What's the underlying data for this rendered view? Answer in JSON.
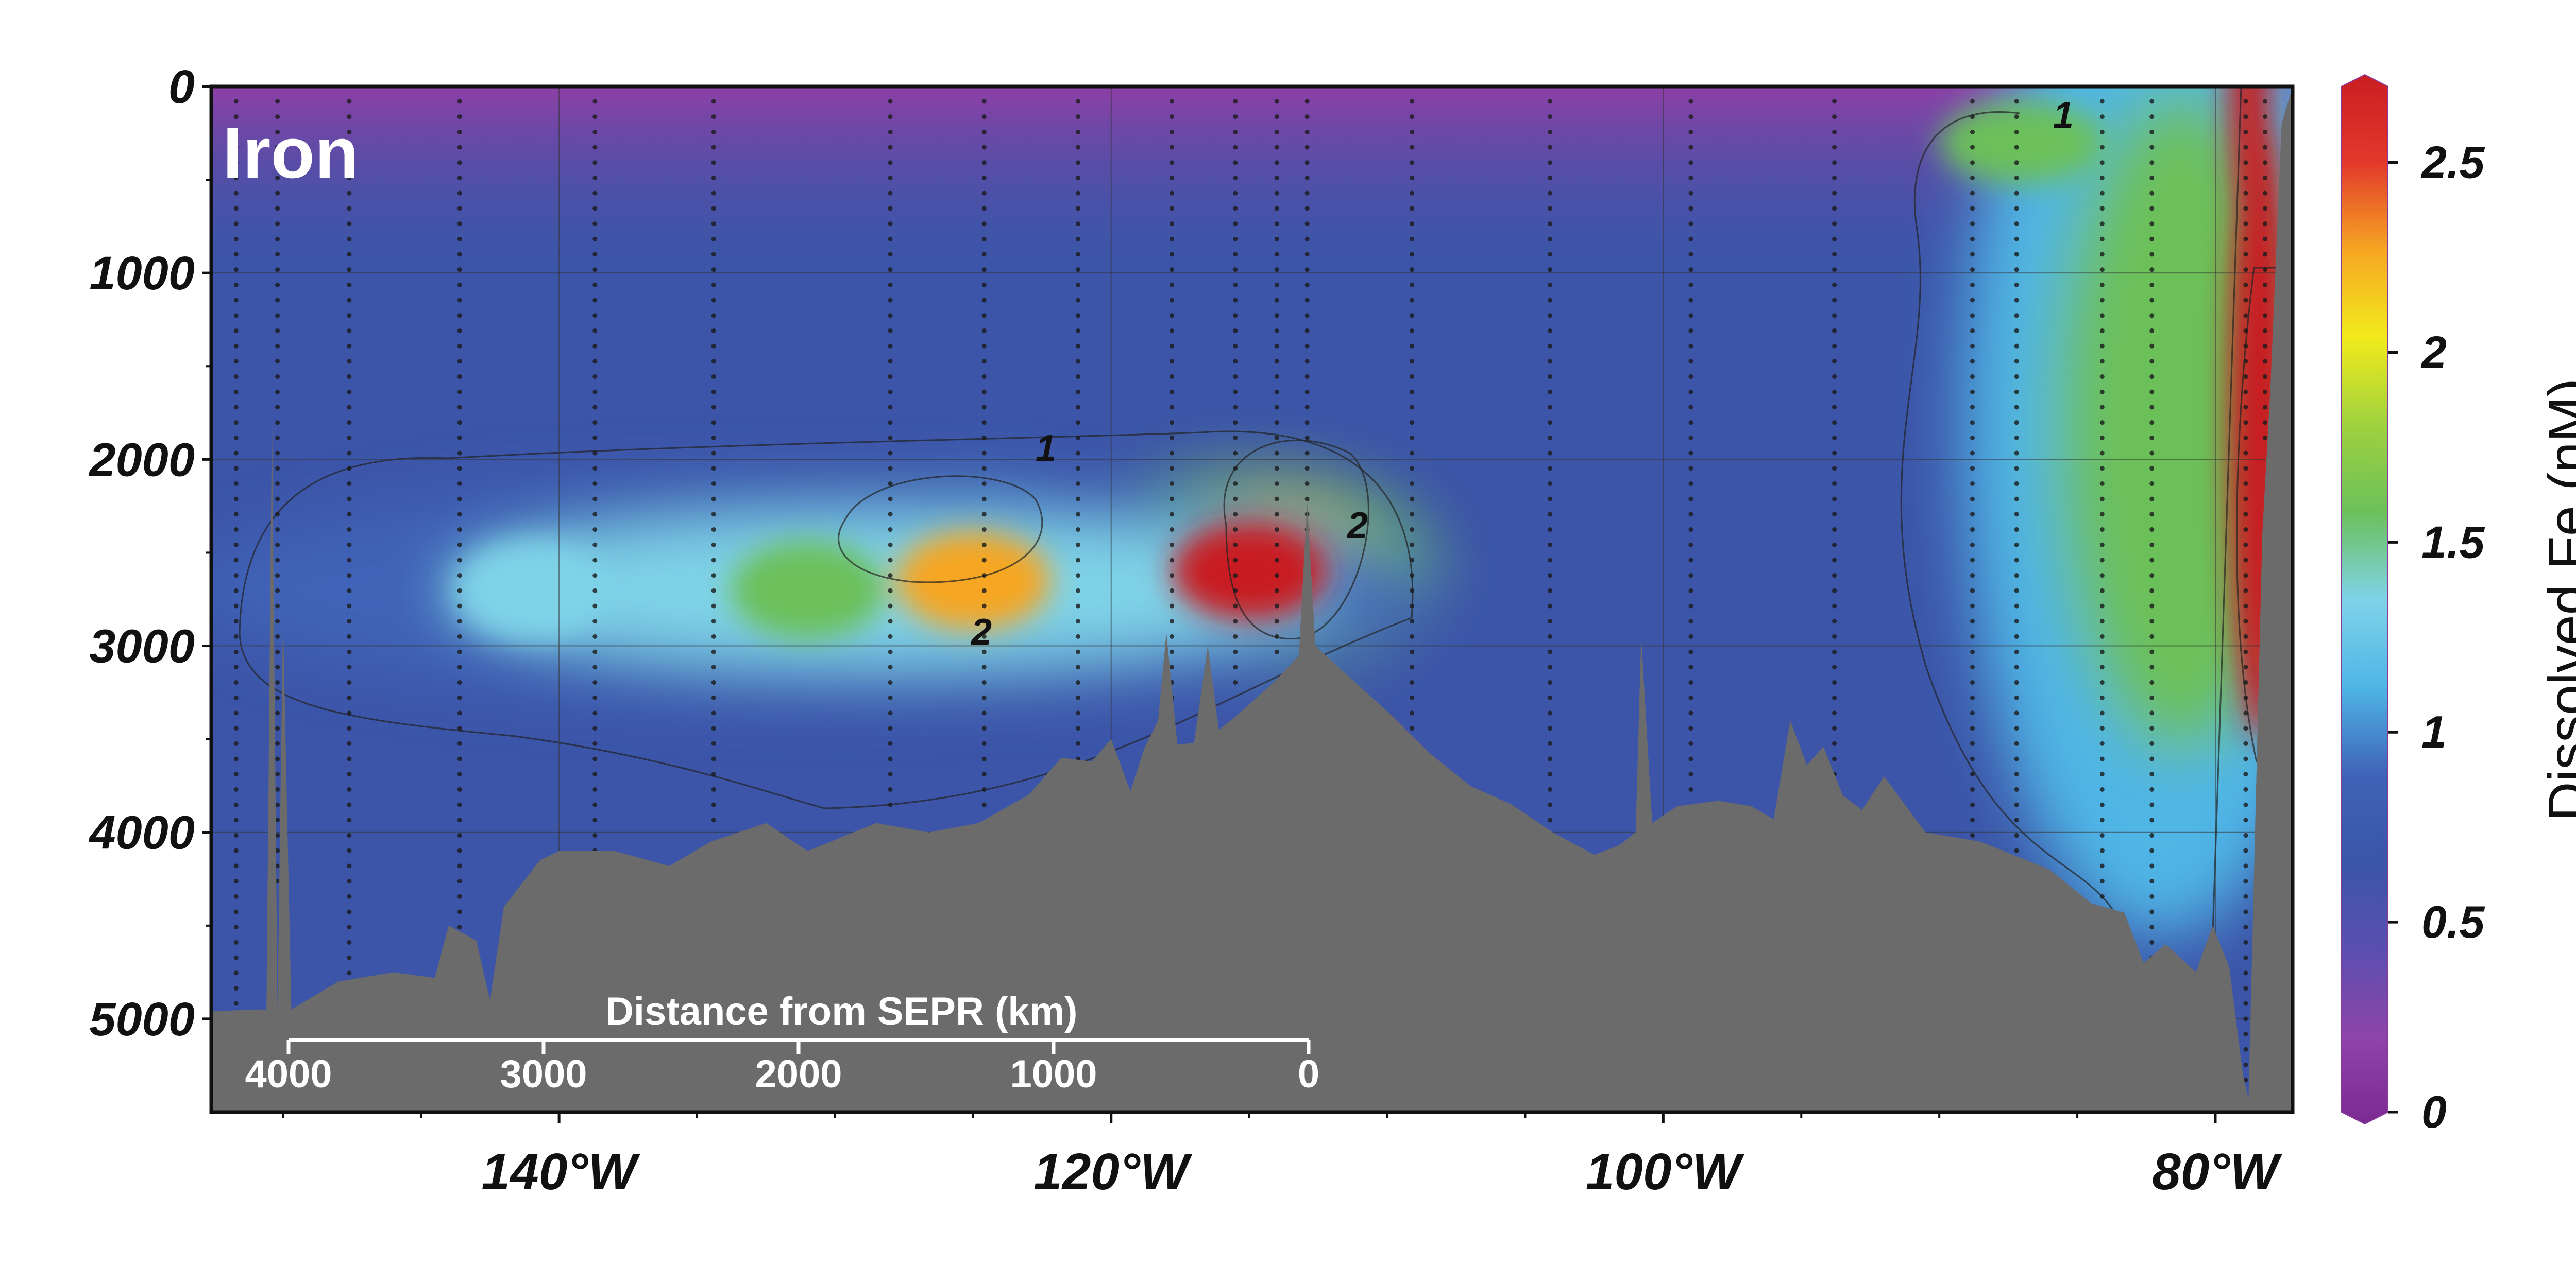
{
  "chart_data": {
    "type": "heatmap",
    "panel_label": "Iron",
    "colorbar": {
      "title": "Dissolved Fe (nM)",
      "range": [
        0,
        2.7
      ],
      "ticks": [
        "0",
        "0.5",
        "1",
        "1.5",
        "2",
        "2.5"
      ],
      "colors": [
        "#7b2a91",
        "#8e44a8",
        "#5a4fb0",
        "#3a56a8",
        "#3f63b8",
        "#4fb6e6",
        "#7fd3e8",
        "#6cc05a",
        "#9fd23e",
        "#f2ea1c",
        "#f6a623",
        "#e2382b",
        "#c81e22"
      ]
    },
    "y_axis": {
      "label": "",
      "range": [
        0,
        5500
      ],
      "ticks": [
        "0",
        "1000",
        "2000",
        "3000",
        "4000",
        "5000"
      ],
      "inverted": true
    },
    "x_axis": {
      "label": "",
      "range": [
        -152.6,
        -77.2
      ],
      "ticks": [
        "140°W",
        "120°W",
        "100°W",
        "80°W"
      ]
    },
    "distance_scale": {
      "title": "Distance from SEPR (km)",
      "ticks": [
        "4000",
        "3000",
        "2000",
        "1000",
        "0"
      ]
    },
    "contour_labels": [
      "1",
      "1",
      "2",
      "2"
    ],
    "features": [
      {
        "type": "plume",
        "lon": -115,
        "depth": 2600,
        "fe": 2.7
      },
      {
        "type": "plume",
        "lon": -125,
        "depth": 2650,
        "fe": 2.2
      },
      {
        "type": "plume",
        "lon": -131,
        "depth": 2700,
        "fe": 1.5
      },
      {
        "type": "plume",
        "lon": -141,
        "depth": 2700,
        "fe": 1.3
      },
      {
        "type": "shelf",
        "lon": -78.4,
        "depth": 1800,
        "fe": 2.7
      },
      {
        "type": "coastal",
        "lon": -82,
        "depth": 1800,
        "fe": 1.6
      },
      {
        "type": "surface",
        "lon": -87,
        "depth": 300,
        "fe": 1.6
      }
    ],
    "grid": true
  }
}
